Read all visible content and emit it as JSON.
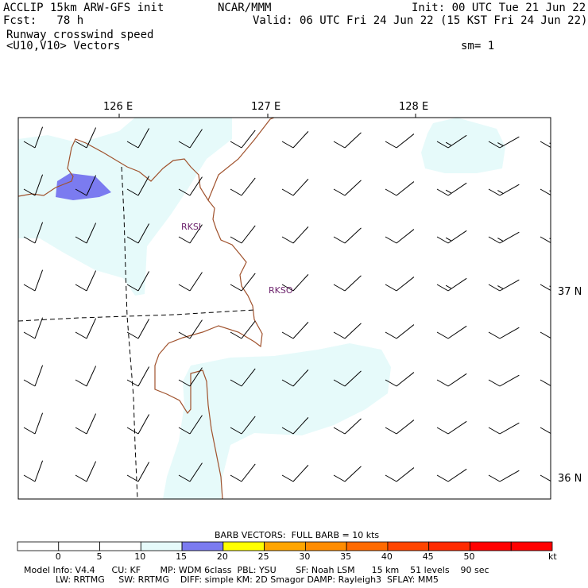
{
  "header": {
    "model_title": "ACCLIP 15km ARW-GFS init",
    "org": "NCAR/MMM",
    "init": "Init: 00 UTC Tue 21 Jun 22",
    "forecast": "Fcst:   78 h",
    "valid": "Valid: 06 UTC Fri 24 Jun 22 (15 KST Fri 24 Jun 22)",
    "field_name": "Runway crosswind speed",
    "vector_name": "<U10,V10> Vectors",
    "smoothing": "sm= 1"
  },
  "map": {
    "lon_labels": [
      "126 E",
      "127 E",
      "128 E"
    ],
    "lat_labels": [
      "37 N",
      "36 N"
    ],
    "stations": [
      "RKSI",
      "RKSO"
    ],
    "colors": {
      "coast": "#a0522d",
      "shade_light": "#e6fafa",
      "shade_blue": "#7b7bf0",
      "station_text": "#6a1f6a",
      "barb": "#000000"
    }
  },
  "legend": {
    "title": "BARB VECTORS:  FULL BARB = 10 kts",
    "ticks": [
      "0",
      "5",
      "10",
      "15",
      "20",
      "25",
      "30",
      "35",
      "40",
      "45",
      "50"
    ],
    "unit": "kt",
    "colors": [
      "#ffffff",
      "#ffffff",
      "#ffffff",
      "#e6fafa",
      "#7b7bf0",
      "#ffff00",
      "#ffa500",
      "#ff8c00",
      "#ff6a00",
      "#ff4500",
      "#ff2a00",
      "#ff0000",
      "#ff0000"
    ]
  },
  "footer": {
    "line1": "Model Info: V4.4      CU: KF       MP: WDM 6class  PBL: YSU       SF: Noah LSM      15 km    51 levels    90 sec",
    "line2": "LW: RRTMG     SW: RRTMG    DIFF: simple KM: 2D Smagor DAMP: Rayleigh3  SFLAY: MM5"
  }
}
